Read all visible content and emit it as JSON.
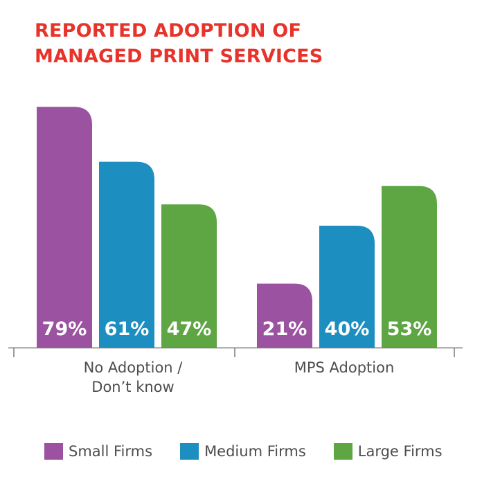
{
  "chart_data": {
    "type": "bar",
    "title_lines": [
      "REPORTED ADOPTION OF",
      "MANAGED PRINT SERVICES"
    ],
    "categories": [
      {
        "lines": [
          "No Adoption /",
          "Don’t know"
        ]
      },
      {
        "lines": [
          "MPS Adoption"
        ]
      }
    ],
    "series": [
      {
        "name": "Small Firms",
        "color": "#9b52a1",
        "values": [
          79,
          21
        ],
        "labels": [
          "79%",
          "21%"
        ]
      },
      {
        "name": "Medium Firms",
        "color": "#1c8fc0",
        "values": [
          61,
          40
        ],
        "labels": [
          "61%",
          "40%"
        ]
      },
      {
        "name": "Large Firms",
        "color": "#5ea643",
        "values": [
          47,
          53
        ],
        "labels": [
          "47%",
          "53%"
        ]
      }
    ],
    "ylim": [
      0,
      100
    ],
    "grid": false,
    "legend_position": "bottom"
  }
}
